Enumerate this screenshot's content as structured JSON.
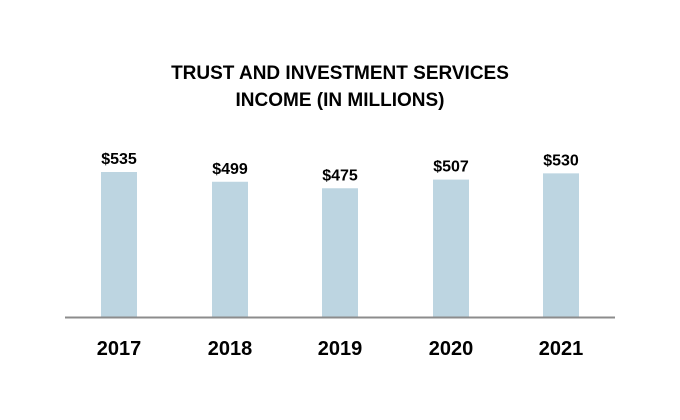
{
  "chart_data": {
    "type": "bar",
    "title": "TRUST AND INVESTMENT SERVICES",
    "subtitle": "INCOME (IN MILLIONS)",
    "categories": [
      "2017",
      "2018",
      "2019",
      "2020",
      "2021"
    ],
    "values": [
      535,
      499,
      475,
      507,
      530
    ],
    "data_labels": [
      "$535",
      "$499",
      "$475",
      "$507",
      "$530"
    ],
    "xlabel": "",
    "ylabel": "",
    "ylim": [
      0,
      560
    ],
    "grid": false,
    "bar_color": "#bdd5e1",
    "axis_color": "#8c8c8c"
  }
}
